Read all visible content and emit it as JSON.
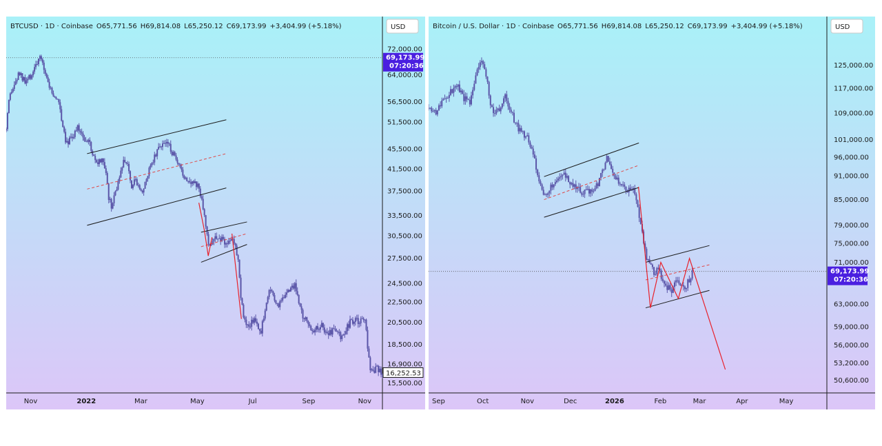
{
  "colors": {
    "bg_top": "#a9f1f8",
    "bg_bottom": "#dcc6f8",
    "candle": "#5a55a8",
    "channel": "#1a1a1a",
    "midline": "#e04848",
    "projection": "#e8202a",
    "price_tag": "#4a1fe0"
  },
  "chart_data": [
    {
      "type": "candlestick",
      "header": {
        "symbol": "BTCUSD · 1D · Coinbase",
        "O": "O65,771.56",
        "H": "H69,814.08",
        "L": "L65,250.12",
        "C": "C69,173.99",
        "change": "+3,404.99 (+5.18%)"
      },
      "currency_label": "USD",
      "y_ticks": [
        "72,000.00",
        "64,000.00",
        "56,500.00",
        "51,500.00",
        "45,500.00",
        "41,500.00",
        "37,500.00",
        "33,500.00",
        "30,500.00",
        "27,500.00",
        "24,500.00",
        "22,500.00",
        "20,500.00",
        "18,500.00",
        "16,900.00",
        "15,500.00"
      ],
      "y_tick_values": [
        72000,
        64000,
        56500,
        51500,
        45500,
        41500,
        37500,
        33500,
        30500,
        27500,
        24500,
        22500,
        20500,
        18500,
        16900,
        15500
      ],
      "ylim": [
        14800,
        76500
      ],
      "y_scale": "log",
      "x_ticks": [
        {
          "label": "Nov",
          "bold": false,
          "t": 0.065
        },
        {
          "label": "2022",
          "bold": true,
          "t": 0.213
        },
        {
          "label": "Mar",
          "bold": false,
          "t": 0.358
        },
        {
          "label": "May",
          "bold": false,
          "t": 0.508
        },
        {
          "label": "Jul",
          "bold": false,
          "t": 0.655
        },
        {
          "label": "Sep",
          "bold": false,
          "t": 0.804
        },
        {
          "label": "Nov",
          "bold": false,
          "t": 0.953
        }
      ],
      "current_price": {
        "value": "69,173.99",
        "countdown": "07:20:36",
        "level": 69173.99
      },
      "last_price": {
        "value": "16,252.53",
        "level": 16252.53
      },
      "path_points": [
        [
          0.0,
          49500
        ],
        [
          0.008,
          57000
        ],
        [
          0.02,
          60500
        ],
        [
          0.035,
          64500
        ],
        [
          0.05,
          61500
        ],
        [
          0.065,
          63500
        ],
        [
          0.08,
          67500
        ],
        [
          0.092,
          68800
        ],
        [
          0.105,
          64500
        ],
        [
          0.115,
          60500
        ],
        [
          0.128,
          57500
        ],
        [
          0.14,
          56500
        ],
        [
          0.15,
          51000
        ],
        [
          0.158,
          47500
        ],
        [
          0.165,
          47200
        ],
        [
          0.178,
          48500
        ],
        [
          0.19,
          50000
        ],
        [
          0.2,
          49200
        ],
        [
          0.21,
          47500
        ],
        [
          0.222,
          46500
        ],
        [
          0.232,
          43800
        ],
        [
          0.242,
          42000
        ],
        [
          0.252,
          43200
        ],
        [
          0.262,
          41800
        ],
        [
          0.272,
          36500
        ],
        [
          0.28,
          34500
        ],
        [
          0.29,
          37500
        ],
        [
          0.302,
          39500
        ],
        [
          0.312,
          43500
        ],
        [
          0.322,
          43200
        ],
        [
          0.332,
          38500
        ],
        [
          0.342,
          39500
        ],
        [
          0.352,
          38800
        ],
        [
          0.362,
          37200
        ],
        [
          0.372,
          39000
        ],
        [
          0.383,
          42500
        ],
        [
          0.395,
          44000
        ],
        [
          0.41,
          46500
        ],
        [
          0.425,
          46800
        ],
        [
          0.435,
          45800
        ],
        [
          0.448,
          43500
        ],
        [
          0.46,
          41500
        ],
        [
          0.472,
          40200
        ],
        [
          0.485,
          39500
        ],
        [
          0.497,
          39000
        ],
        [
          0.51,
          38200
        ],
        [
          0.52,
          36500
        ],
        [
          0.53,
          31800
        ],
        [
          0.54,
          28500
        ],
        [
          0.548,
          30200
        ],
        [
          0.56,
          29800
        ],
        [
          0.572,
          30300
        ],
        [
          0.585,
          29300
        ],
        [
          0.597,
          30200
        ],
        [
          0.607,
          29500
        ],
        [
          0.617,
          27500
        ],
        [
          0.625,
          22500
        ],
        [
          0.635,
          20300
        ],
        [
          0.645,
          19800
        ],
        [
          0.655,
          20800
        ],
        [
          0.665,
          20500
        ],
        [
          0.677,
          19700
        ],
        [
          0.688,
          21800
        ],
        [
          0.7,
          23800
        ],
        [
          0.712,
          23200
        ],
        [
          0.722,
          21800
        ],
        [
          0.732,
          22800
        ],
        [
          0.745,
          23500
        ],
        [
          0.757,
          23800
        ],
        [
          0.767,
          24500
        ],
        [
          0.775,
          22800
        ],
        [
          0.787,
          21300
        ],
        [
          0.8,
          20400
        ],
        [
          0.812,
          19900
        ],
        [
          0.825,
          19900
        ],
        [
          0.838,
          20300
        ],
        [
          0.85,
          19500
        ],
        [
          0.862,
          19600
        ],
        [
          0.875,
          19800
        ],
        [
          0.888,
          19200
        ],
        [
          0.9,
          19400
        ],
        [
          0.912,
          20400
        ],
        [
          0.925,
          20600
        ],
        [
          0.937,
          20500
        ],
        [
          0.948,
          20800
        ],
        [
          0.956,
          20400
        ],
        [
          0.962,
          17500
        ],
        [
          0.97,
          16300
        ],
        [
          0.985,
          16500
        ],
        [
          1.0,
          16250
        ]
      ],
      "overlays": [
        {
          "kind": "channel-upper",
          "from": [
            0.215,
            44500
          ],
          "to": [
            0.585,
            52000
          ]
        },
        {
          "kind": "channel-mid",
          "from": [
            0.215,
            37800
          ],
          "to": [
            0.585,
            44500
          ]
        },
        {
          "kind": "channel-lower",
          "from": [
            0.215,
            32000
          ],
          "to": [
            0.585,
            38000
          ]
        },
        {
          "kind": "channel-upper",
          "from": [
            0.518,
            31000
          ],
          "to": [
            0.64,
            32500
          ]
        },
        {
          "kind": "channel-mid",
          "from": [
            0.518,
            29000
          ],
          "to": [
            0.64,
            30800
          ]
        },
        {
          "kind": "channel-lower",
          "from": [
            0.518,
            27000
          ],
          "to": [
            0.64,
            29300
          ]
        },
        {
          "kind": "projection",
          "points": [
            [
              0.512,
              35500
            ],
            [
              0.527,
              31200
            ],
            [
              0.537,
              27800
            ],
            [
              0.547,
              30300
            ]
          ]
        },
        {
          "kind": "projection",
          "points": [
            [
              0.6,
              30800
            ],
            [
              0.625,
              20800
            ]
          ]
        }
      ]
    },
    {
      "type": "candlestick",
      "header": {
        "symbol": "Bitcoin / U.S. Dollar · 1D · Coinbase",
        "O": "O65,771.56",
        "H": "H69,814.08",
        "L": "L65,250.12",
        "C": "C69,173.99",
        "change": "+3,404.99 (+5.18%)"
      },
      "currency_label": "USD",
      "y_ticks": [
        "125,000.00",
        "117,000.00",
        "109,000.00",
        "101,000.00",
        "96,000.00",
        "91,000.00",
        "85,000.00",
        "79,000.00",
        "75,000.00",
        "71,000.00",
        "63,000.00",
        "59,000.00",
        "56,000.00",
        "53,200.00",
        "50,600.00"
      ],
      "y_tick_values": [
        125000,
        117000,
        109000,
        101000,
        96000,
        91000,
        85000,
        79000,
        75000,
        71000,
        63000,
        59000,
        56000,
        53200,
        50600
      ],
      "ylim": [
        48800,
        136000
      ],
      "y_scale": "log",
      "x_ticks": [
        {
          "label": "Sep",
          "bold": false,
          "t": 0.025
        },
        {
          "label": "Oct",
          "bold": false,
          "t": 0.136
        },
        {
          "label": "Nov",
          "bold": false,
          "t": 0.248
        },
        {
          "label": "Dec",
          "bold": false,
          "t": 0.356
        },
        {
          "label": "2026",
          "bold": true,
          "t": 0.467
        },
        {
          "label": "Feb",
          "bold": false,
          "t": 0.582
        },
        {
          "label": "Mar",
          "bold": false,
          "t": 0.68
        },
        {
          "label": "Apr",
          "bold": false,
          "t": 0.787
        },
        {
          "label": "May",
          "bold": false,
          "t": 0.898
        }
      ],
      "current_price": {
        "value": "69,173.99",
        "countdown": "07:20:36",
        "level": 69173.99
      },
      "path_points": [
        [
          0.0,
          110500
        ],
        [
          0.015,
          109000
        ],
        [
          0.03,
          111500
        ],
        [
          0.045,
          113500
        ],
        [
          0.06,
          116500
        ],
        [
          0.075,
          117500
        ],
        [
          0.09,
          113500
        ],
        [
          0.105,
          112500
        ],
        [
          0.115,
          118500
        ],
        [
          0.125,
          124000
        ],
        [
          0.135,
          126000
        ],
        [
          0.145,
          121000
        ],
        [
          0.155,
          112000
        ],
        [
          0.168,
          108500
        ],
        [
          0.18,
          111000
        ],
        [
          0.192,
          114000
        ],
        [
          0.205,
          110000
        ],
        [
          0.217,
          106000
        ],
        [
          0.228,
          104000
        ],
        [
          0.24,
          102500
        ],
        [
          0.25,
          101500
        ],
        [
          0.262,
          96500
        ],
        [
          0.272,
          92500
        ],
        [
          0.282,
          88000
        ],
        [
          0.292,
          85500
        ],
        [
          0.305,
          87500
        ],
        [
          0.315,
          89500
        ],
        [
          0.328,
          90500
        ],
        [
          0.34,
          91200
        ],
        [
          0.352,
          89800
        ],
        [
          0.362,
          88000
        ],
        [
          0.375,
          88000
        ],
        [
          0.387,
          86500
        ],
        [
          0.4,
          87200
        ],
        [
          0.412,
          87500
        ],
        [
          0.425,
          88500
        ],
        [
          0.437,
          92500
        ],
        [
          0.448,
          95800
        ],
        [
          0.457,
          93800
        ],
        [
          0.467,
          91500
        ],
        [
          0.477,
          89500
        ],
        [
          0.487,
          88800
        ],
        [
          0.5,
          87500
        ],
        [
          0.512,
          88200
        ],
        [
          0.522,
          84500
        ],
        [
          0.535,
          78500
        ],
        [
          0.547,
          71500
        ],
        [
          0.557,
          70500
        ],
        [
          0.567,
          68500
        ],
        [
          0.577,
          69800
        ],
        [
          0.588,
          67500
        ],
        [
          0.6,
          66000
        ],
        [
          0.612,
          65500
        ],
        [
          0.622,
          67500
        ],
        [
          0.632,
          66500
        ],
        [
          0.645,
          66200
        ],
        [
          0.655,
          67500
        ],
        [
          0.662,
          69173
        ]
      ],
      "overlays": [
        {
          "kind": "channel-upper",
          "from": [
            0.29,
            90800
          ],
          "to": [
            0.528,
            100000
          ]
        },
        {
          "kind": "channel-mid",
          "from": [
            0.29,
            85000
          ],
          "to": [
            0.528,
            93800
          ]
        },
        {
          "kind": "channel-lower",
          "from": [
            0.29,
            80800
          ],
          "to": [
            0.528,
            88000
          ]
        },
        {
          "kind": "channel-upper",
          "from": [
            0.545,
            71000
          ],
          "to": [
            0.705,
            74500
          ]
        },
        {
          "kind": "channel-mid",
          "from": [
            0.545,
            67500
          ],
          "to": [
            0.705,
            70500
          ]
        },
        {
          "kind": "channel-lower",
          "from": [
            0.545,
            62300
          ],
          "to": [
            0.705,
            65500
          ]
        },
        {
          "kind": "projection",
          "points": [
            [
              0.527,
              88200
            ],
            [
              0.557,
              62300
            ],
            [
              0.583,
              71000
            ],
            [
              0.627,
              64000
            ],
            [
              0.655,
              71800
            ],
            [
              0.745,
              52200
            ]
          ]
        }
      ]
    }
  ]
}
